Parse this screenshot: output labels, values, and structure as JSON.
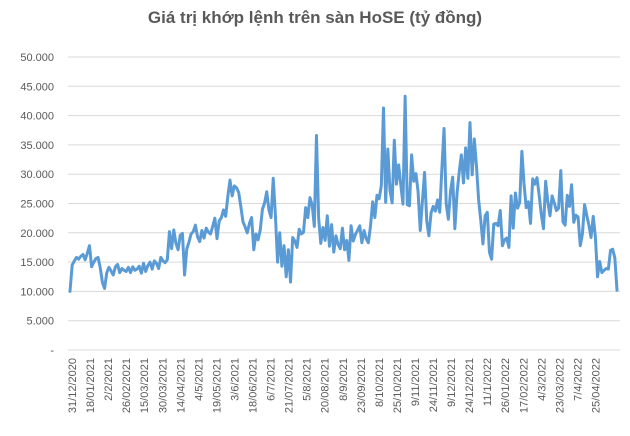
{
  "chart_data": {
    "type": "line",
    "title": "Giá trị khớp lệnh trên sàn HoSE (tỷ đồng)",
    "xlabel": "",
    "ylabel": "",
    "ylim": [
      0,
      50000
    ],
    "y_tick_labels": [
      "-",
      "5.000",
      "10.000",
      "15.000",
      "20.000",
      "25.000",
      "30.000",
      "35.000",
      "40.000",
      "45.000",
      "50.000"
    ],
    "grid": "horizontal",
    "legend": "none",
    "line_color": "#5b9bd5",
    "x_tick_labels": [
      "31/12/2020",
      "18/01/2021",
      "2/2/2021",
      "26/02/2021",
      "15/03/2021",
      "30/03/2021",
      "14/04/2021",
      "4/5/2021",
      "19/05/2021",
      "3/6/2021",
      "18/06/2021",
      "6/7/2021",
      "21/07/2021",
      "5/8/2021",
      "20/08/2021",
      "8/9/2021",
      "23/09/2021",
      "8/10/2021",
      "25/10/2021",
      "9/11/2021",
      "24/11/2021",
      "9/12/2021",
      "24/12/2021",
      "11/1/2022",
      "26/01/2022",
      "17/02/2022",
      "4/3/2022",
      "23/03/2022",
      "7/4/2022",
      "25/04/2022"
    ],
    "series": [
      {
        "values": [
          10000,
          14500,
          15200,
          15800,
          15500,
          16000,
          16300,
          15400,
          16500,
          17800,
          14200,
          15000,
          15600,
          15800,
          14000,
          11500,
          10500,
          13200,
          14100,
          13500,
          12800,
          14200,
          14600,
          13200,
          13900,
          13600,
          13400,
          14100,
          13200,
          14200,
          13600,
          13800,
          14300,
          13100,
          14800,
          13400,
          14400,
          15000,
          13800,
          15200,
          14800,
          13900,
          15800,
          15200,
          14900,
          15400,
          20200,
          17300,
          20500,
          18200,
          17100,
          19600,
          19900,
          12800,
          17200,
          18400,
          19800,
          20200,
          21300,
          19300,
          18500,
          20400,
          19100,
          20800,
          20100,
          19800,
          21100,
          22500,
          19000,
          22000,
          22600,
          23900,
          22800,
          26200,
          29000,
          26300,
          28000,
          27700,
          26900,
          24500,
          21900,
          21000,
          20000,
          21600,
          22600,
          17100,
          19800,
          18800,
          20500,
          24000,
          25100,
          27000,
          23900,
          22600,
          29300,
          23000,
          15000,
          20000,
          14300,
          17800,
          12500,
          17100,
          11600,
          19200,
          18600,
          17500,
          20600,
          19800,
          20100,
          24300,
          22600,
          26000,
          24800,
          21100,
          36600,
          22500,
          18200,
          20900,
          18700,
          22900,
          17700,
          21400,
          16700,
          19500,
          18000,
          17300,
          20800,
          17100,
          18700,
          15300,
          21200,
          18600,
          19700,
          20400,
          21200,
          18300,
          20400,
          19000,
          18300,
          21200,
          25300,
          22600,
          26400,
          25800,
          28100,
          41300,
          25200,
          34300,
          27200,
          25100,
          35800,
          28300,
          31600,
          28200,
          24900,
          43300,
          24800,
          24600,
          33300,
          28800,
          30100,
          27000,
          20400,
          25400,
          30300,
          22000,
          19500,
          23400,
          24500,
          23700,
          25600,
          23500,
          30900,
          37800,
          25000,
          22300,
          27100,
          29500,
          20700,
          26700,
          30300,
          33300,
          28500,
          34500,
          29300,
          38800,
          29900,
          36000,
          31400,
          25600,
          22100,
          18100,
          22900,
          23500,
          16700,
          15500,
          21500,
          21600,
          21200,
          23800,
          17800,
          18800,
          19100,
          17500,
          26300,
          20800,
          26800,
          24200,
          25200,
          33900,
          28400,
          24300,
          25300,
          21600,
          29200,
          28300,
          29400,
          26400,
          23100,
          20700,
          28800,
          25300,
          22900,
          26300,
          25100,
          23800,
          24200,
          30600,
          21900,
          21300,
          26400,
          24500,
          28200,
          21800,
          23000,
          22700,
          17800,
          19800,
          24800,
          23000,
          21300,
          19200,
          22800,
          19300,
          12500,
          15100,
          13200,
          13600,
          13900,
          13800,
          17000,
          17200,
          15700,
          10200
        ]
      }
    ]
  }
}
